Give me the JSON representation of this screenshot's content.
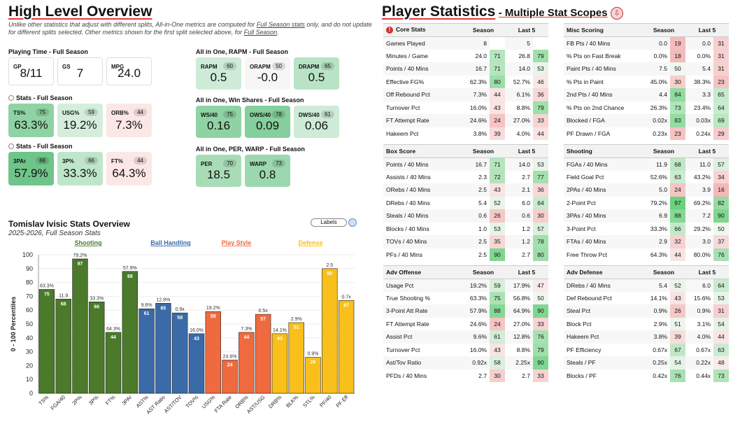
{
  "left": {
    "title": "High Level Overview",
    "note_pre": "Unlike other statistics that adjust with different splits, All-in-One metrics are computed for ",
    "note_link1": "Full Season stats",
    "note_mid": " only, and do not update for different splits selected. Other metrics shown for the first split selected above, for ",
    "note_link2": "Full Season",
    "note_end": ".",
    "playing_time": {
      "header": "Playing Time - Full Season",
      "cards": [
        {
          "label": "GP",
          "value": "8/11"
        },
        {
          "label": "GS",
          "value": "7"
        },
        {
          "label": "MPG",
          "value": "24.0"
        }
      ]
    },
    "stats1": {
      "header": "Stats - Full Season",
      "cards": [
        {
          "label": "TS%",
          "pct": "75",
          "value": "63.3%",
          "color": "#8fd3a4"
        },
        {
          "label": "USG%",
          "pct": "59",
          "value": "19.2%",
          "color": "#d4eedb"
        },
        {
          "label": "ORB%",
          "pct": "44",
          "value": "7.3%",
          "color": "#fbe7e5"
        }
      ]
    },
    "stats2": {
      "header": "Stats - Full Season",
      "cards": [
        {
          "label": "3PAr",
          "pct": "88",
          "value": "57.9%",
          "color": "#6fc48a"
        },
        {
          "label": "3P%",
          "pct": "66",
          "value": "33.3%",
          "color": "#bfe6ca"
        },
        {
          "label": "FT%",
          "pct": "44",
          "value": "64.3%",
          "color": "#fbe7e5"
        }
      ]
    },
    "rapm": {
      "header": "All in One, RAPM - Full Season",
      "cards": [
        {
          "label": "RAPM",
          "pct": "60",
          "value": "0.5",
          "color": "#cdebd6"
        },
        {
          "label": "ORAPM",
          "pct": "50",
          "value": "-0.0",
          "color": "#f6f6f6"
        },
        {
          "label": "DRAPM",
          "pct": "65",
          "value": "0.5",
          "color": "#b9e3c5"
        }
      ]
    },
    "ws": {
      "header": "All in One, Win Shares - Full Season",
      "cards": [
        {
          "label": "WS/40",
          "pct": "75",
          "value": "0.16",
          "color": "#8fd3a4"
        },
        {
          "label": "OWS/40",
          "pct": "78",
          "value": "0.09",
          "color": "#84cf9b"
        },
        {
          "label": "DWS/40",
          "pct": "61",
          "value": "0.06",
          "color": "#cdebd6"
        }
      ]
    },
    "per": {
      "header": "All in One, PER, WARP - Full Season",
      "cards": [
        {
          "label": "PER",
          "pct": "70",
          "value": "18.5",
          "color": "#a8dcb7"
        },
        {
          "label": "WARP",
          "pct": "73",
          "value": "0.8",
          "color": "#9cd8af"
        }
      ]
    }
  },
  "chart": {
    "title": "Tomislav Ivisic Stats Overview",
    "subtitle": "2025-2026, Full Season Stats",
    "labels_button": "Labels",
    "groups": [
      {
        "name": "Shooting",
        "color": "#4a7a2a"
      },
      {
        "name": "Ball Handling",
        "color": "#3b6aa8"
      },
      {
        "name": "Play Style",
        "color": "#f06a3f"
      },
      {
        "name": "Defense",
        "color": "#f9bf1a"
      }
    ]
  },
  "chart_data": {
    "type": "bar",
    "title": "Tomislav Ivisic Stats Overview",
    "ylabel": "0 - 100 Percentiles",
    "ylim": [
      0,
      100
    ],
    "yticks": [
      "0",
      "10",
      "20",
      "30",
      "40",
      "50",
      "60",
      "70",
      "80",
      "90",
      "100"
    ],
    "categories": [
      "TS%",
      "FGA/40",
      "2P%",
      "3P%",
      "FT%",
      "3PAr",
      "AST%",
      "AST Ratio",
      "AST/TOV",
      "TOV%",
      "USG%",
      "FTA Rate",
      "ORB%",
      "AST/USG",
      "DRB%",
      "BLK%",
      "STL%",
      "PF/40",
      "PF Eff"
    ],
    "values": [
      75,
      68,
      97,
      66,
      44,
      88,
      61,
      65,
      58,
      43,
      59,
      24,
      44,
      57,
      43,
      51,
      26,
      90,
      67
    ],
    "raw": [
      "63.3%",
      "11.9",
      "79.2%",
      "33.3%",
      "64.3%",
      "57.9%",
      "9.6%",
      "12.8%",
      "0.9x",
      "16.0%",
      "19.2%",
      "24.6%",
      "7.3%",
      "0.5x",
      "14.1%",
      "2.9%",
      "0.9%",
      "2.5",
      "0.7x"
    ],
    "group": [
      0,
      0,
      0,
      0,
      0,
      0,
      1,
      1,
      1,
      1,
      2,
      2,
      2,
      2,
      3,
      3,
      3,
      3,
      3
    ]
  },
  "right": {
    "title": "Player Statistics",
    "subtitle": "- Multiple Stat Scopes",
    "season": "Season",
    "last5": "Last 5",
    "tables": [
      {
        "name": "Core Stats",
        "rows": [
          [
            "Games Played",
            "8",
            "",
            "5",
            ""
          ],
          [
            "Minutes / Game",
            "24.0",
            "71",
            "26.8",
            "79"
          ],
          [
            "Points / 40 Mins",
            "16.7",
            "71",
            "14.0",
            "53"
          ],
          [
            "Effective FG%",
            "62.3%",
            "80",
            "52.7%",
            "46"
          ],
          [
            "Off Rebound Pct",
            "7.3%",
            "44",
            "6.1%",
            "36"
          ],
          [
            "Turnover Pct",
            "16.0%",
            "43",
            "8.8%",
            "79"
          ],
          [
            "FT Attempt Rate",
            "24.6%",
            "24",
            "27.0%",
            "33"
          ],
          [
            "Hakeem Pct",
            "3.8%",
            "39",
            "4.0%",
            "44"
          ]
        ]
      },
      {
        "name": "Misc Scoring",
        "rows": [
          [
            "FB Pts / 40 Mins",
            "0.0",
            "19",
            "0.0",
            "31"
          ],
          [
            "% Pts on Fast Break",
            "0.0%",
            "18",
            "0.0%",
            "31"
          ],
          [
            "Paint Pts / 40 Mins",
            "7.5",
            "50",
            "5.4",
            "31"
          ],
          [
            "% Pts in Paint",
            "45.0%",
            "30",
            "38.3%",
            "23"
          ],
          [
            "2nd Pts / 40 Mins",
            "4.4",
            "84",
            "3.3",
            "65"
          ],
          [
            "% Pts on 2nd Chance",
            "26.3%",
            "73",
            "23.4%",
            "64"
          ],
          [
            "Blocked / FGA",
            "0.02x",
            "83",
            "0.03x",
            "69"
          ],
          [
            "PF Drawn / FGA",
            "0.23x",
            "23",
            "0.24x",
            "29"
          ]
        ]
      },
      {
        "name": "Box Score",
        "rows": [
          [
            "Points / 40 Mins",
            "16.7",
            "71",
            "14.0",
            "53"
          ],
          [
            "Assists / 40 Mins",
            "2.3",
            "72",
            "2.7",
            "77"
          ],
          [
            "ORebs / 40 Mins",
            "2.5",
            "43",
            "2.1",
            "36"
          ],
          [
            "DRebs / 40 Mins",
            "5.4",
            "52",
            "6.0",
            "64"
          ],
          [
            "Steals / 40 Mins",
            "0.6",
            "26",
            "0.6",
            "30"
          ],
          [
            "Blocks / 40 Mins",
            "1.0",
            "53",
            "1.2",
            "57"
          ],
          [
            "TOVs / 40 Mins",
            "2.5",
            "35",
            "1.2",
            "78"
          ],
          [
            "PFs / 40 Mins",
            "2.5",
            "90",
            "2.7",
            "80"
          ]
        ]
      },
      {
        "name": "Shooting",
        "rows": [
          [
            "FGAs / 40 Mins",
            "11.9",
            "68",
            "11.0",
            "57"
          ],
          [
            "Field Goal Pct",
            "52.6%",
            "63",
            "43.2%",
            "34"
          ],
          [
            "2PAs / 40 Mins",
            "5.0",
            "24",
            "3.9",
            "16"
          ],
          [
            "2-Point Pct",
            "79.2%",
            "97",
            "69.2%",
            "82"
          ],
          [
            "3PAs / 40 Mins",
            "6.9",
            "88",
            "7.2",
            "90"
          ],
          [
            "3-Point Pct",
            "33.3%",
            "66",
            "29.2%",
            "50"
          ],
          [
            "FTAs / 40 Mins",
            "2.9",
            "32",
            "3.0",
            "37"
          ],
          [
            "Free Throw Pct",
            "64.3%",
            "44",
            "80.0%",
            "76"
          ]
        ]
      },
      {
        "name": "Adv Offense",
        "rows": [
          [
            "Usage Pct",
            "19.2%",
            "59",
            "17.9%",
            "47"
          ],
          [
            "True Shooting %",
            "63.3%",
            "75",
            "56.8%",
            "50"
          ],
          [
            "3-Point Att Rate",
            "57.9%",
            "88",
            "64.9%",
            "90"
          ],
          [
            "FT Attempt Rate",
            "24.6%",
            "24",
            "27.0%",
            "33"
          ],
          [
            "Assist Pct",
            "9.6%",
            "61",
            "12.8%",
            "76"
          ],
          [
            "Turnover Pct",
            "16.0%",
            "43",
            "8.8%",
            "79"
          ],
          [
            "Ast/Tov Ratio",
            "0.92x",
            "58",
            "2.25x",
            "90"
          ],
          [
            "PFDs / 40 Mins",
            "2.7",
            "30",
            "2.7",
            "33"
          ]
        ]
      },
      {
        "name": "Adv Defense",
        "rows": [
          [
            "DRebs / 40 Mins",
            "5.4",
            "52",
            "6.0",
            "64"
          ],
          [
            "Def Rebound Pct",
            "14.1%",
            "43",
            "15.6%",
            "53"
          ],
          [
            "Steal Pct",
            "0.9%",
            "26",
            "0.9%",
            "31"
          ],
          [
            "Block Pct",
            "2.9%",
            "51",
            "3.1%",
            "54"
          ],
          [
            "Hakeem Pct",
            "3.8%",
            "39",
            "4.0%",
            "44"
          ],
          [
            "PF Efficiency",
            "0.67x",
            "67",
            "0.67x",
            "63"
          ],
          [
            "Steals / PF",
            "0.25x",
            "54",
            "0.22x",
            "48"
          ],
          [
            "Blocks / PF",
            "0.42x",
            "76",
            "0.44x",
            "73"
          ]
        ]
      }
    ]
  }
}
